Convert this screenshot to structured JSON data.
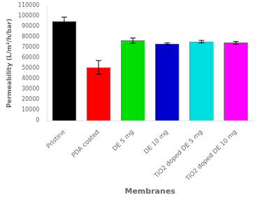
{
  "chart_data": {
    "type": "bar",
    "categories": [
      "Pristine",
      "PDA coated",
      "DE 5 mg",
      "DE 10 mg",
      "TiO2 doped DE 5 mg",
      "TiO2 doped DE 10 mg"
    ],
    "values": [
      95000,
      51000,
      76500,
      73500,
      75500,
      74500
    ],
    "errors": [
      4000,
      6500,
      2500,
      800,
      1200,
      1200
    ],
    "colors": [
      "#000000",
      "#ff0000",
      "#00dd00",
      "#0000cc",
      "#00dddd",
      "#ff00ff"
    ],
    "xlabel": "Membranes",
    "ylabel": "Permeability (L/m²/h/bar)",
    "ylim": [
      0,
      110000
    ],
    "yticks": [
      0,
      10000,
      20000,
      30000,
      40000,
      50000,
      60000,
      70000,
      80000,
      90000,
      100000,
      110000
    ],
    "grid": false
  }
}
